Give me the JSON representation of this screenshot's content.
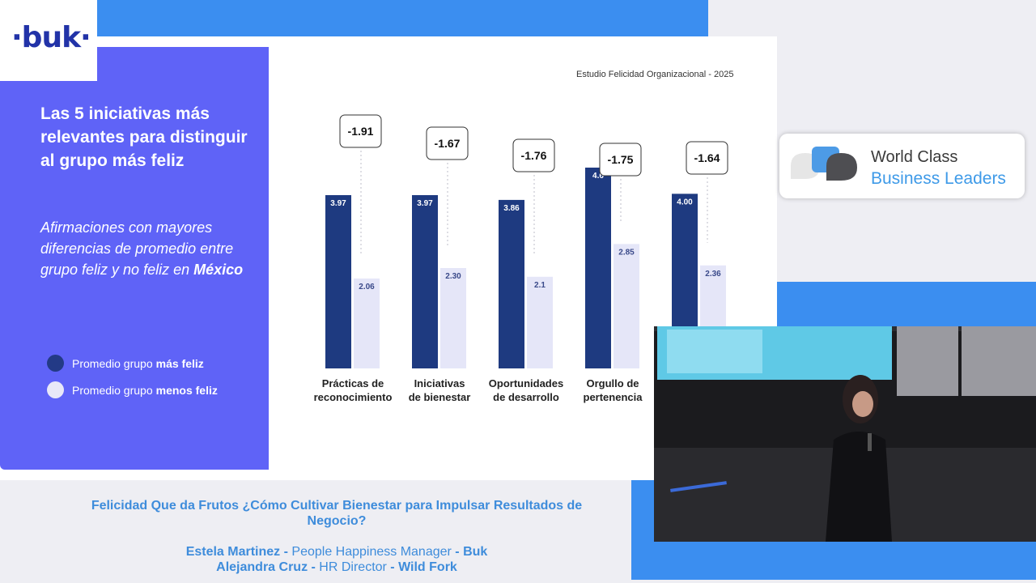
{
  "slide": {
    "logo": "·buk·",
    "title": "Las 5 iniciativas más relevantes para distinguir al grupo más feliz",
    "subtitle_main": "Afirmaciones con mayores diferencias  de promedio entre grupo feliz y no feliz en",
    "subtitle_country": "México",
    "study": "Estudio Felicidad Organizacional - 2025",
    "legend": [
      {
        "prefix": "Promedio grupo",
        "strong": "más feliz",
        "color": "#233a86"
      },
      {
        "prefix": "Promedio grupo",
        "strong": "menos feliz",
        "color": "#e8e8f8"
      }
    ]
  },
  "chart_data": {
    "type": "bar",
    "categories": [
      [
        "Prácticas de",
        "reconocimiento"
      ],
      [
        "Iniciativas",
        "de bienestar"
      ],
      [
        "Oportunidades",
        "de desarrollo"
      ],
      [
        "Orgullo de",
        "pertenencia"
      ],
      [
        "",
        ""
      ]
    ],
    "series": [
      {
        "name": "Promedio grupo más feliz",
        "labels": [
          "3.97",
          "3.97",
          "3.86",
          "4.6",
          "4.00"
        ],
        "values": [
          3.97,
          3.97,
          3.86,
          4.6,
          4.0
        ],
        "color": "#1e3a80"
      },
      {
        "name": "Promedio grupo menos feliz",
        "labels": [
          "2.06",
          "2.30",
          "2.1",
          "2.85",
          "2.36"
        ],
        "values": [
          2.06,
          2.3,
          2.1,
          2.85,
          2.36
        ],
        "color": "#e5e6f8"
      }
    ],
    "differences": [
      "-1.91",
      "-1.67",
      "-1.76",
      "-1.75",
      "-1.64"
    ]
  },
  "brand": {
    "line1": "World Class",
    "line2": "Business Leaders"
  },
  "talk": {
    "title": "Felicidad Que da Frutos ¿Cómo Cultivar Bienestar para Impulsar Resultados de Negocio?",
    "speakers": [
      {
        "name": "Estela Martinez",
        "sep1": " - ",
        "role": "People Happiness Manager",
        "sep2": " - ",
        "company": "Buk"
      },
      {
        "name": "Alejandra Cruz",
        "sep1": " - ",
        "role": "HR Director",
        "sep2": " - ",
        "company": "Wild Fork"
      }
    ]
  }
}
